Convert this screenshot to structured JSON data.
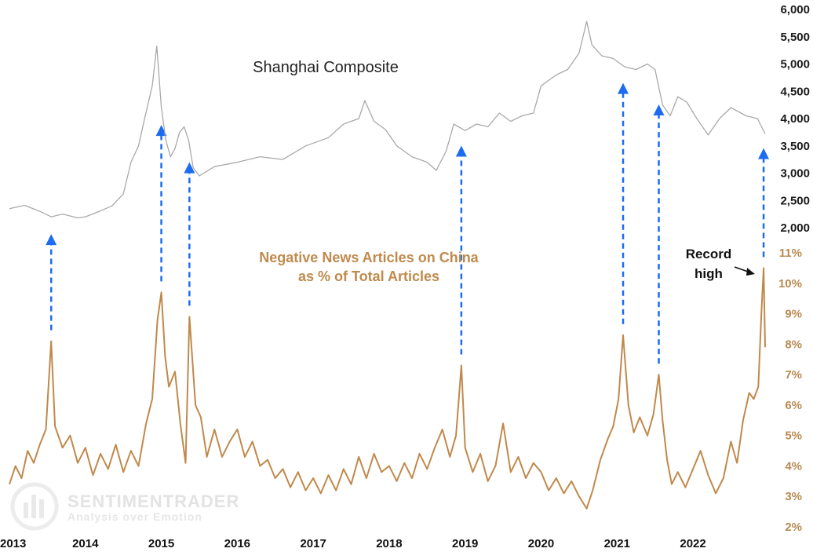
{
  "chart_data": {
    "type": "line",
    "x_range": [
      2013.0,
      2022.95
    ],
    "x_ticks": [
      "2013",
      "2014",
      "2015",
      "2016",
      "2017",
      "2018",
      "2019",
      "2020",
      "2021",
      "2022"
    ],
    "y_left": {
      "min": 2000,
      "max": 6000,
      "ticks": [
        "6,000",
        "5,500",
        "5,000",
        "4,500",
        "4,000",
        "3,500",
        "3,000",
        "2,500",
        "2,000"
      ]
    },
    "y_right": {
      "unit": "%",
      "min": 2,
      "max": 11,
      "ticks": [
        "11%",
        "10%",
        "9%",
        "8%",
        "7%",
        "6%",
        "5%",
        "4%",
        "3%",
        "2%"
      ]
    },
    "series": [
      {
        "name": "Shanghai Composite",
        "color": "#a9a9a9",
        "axis": "left",
        "points": [
          [
            2013.0,
            2350
          ],
          [
            2013.2,
            2410
          ],
          [
            2013.4,
            2300
          ],
          [
            2013.55,
            2200
          ],
          [
            2013.7,
            2250
          ],
          [
            2013.9,
            2180
          ],
          [
            2014.0,
            2200
          ],
          [
            2014.15,
            2280
          ],
          [
            2014.35,
            2400
          ],
          [
            2014.5,
            2620
          ],
          [
            2014.6,
            3200
          ],
          [
            2014.7,
            3500
          ],
          [
            2014.78,
            4000
          ],
          [
            2014.88,
            4600
          ],
          [
            2014.94,
            5330
          ],
          [
            2015.0,
            4200
          ],
          [
            2015.06,
            3600
          ],
          [
            2015.12,
            3300
          ],
          [
            2015.18,
            3450
          ],
          [
            2015.24,
            3750
          ],
          [
            2015.3,
            3850
          ],
          [
            2015.36,
            3600
          ],
          [
            2015.42,
            3100
          ],
          [
            2015.5,
            2950
          ],
          [
            2015.7,
            3120
          ],
          [
            2016.0,
            3200
          ],
          [
            2016.3,
            3300
          ],
          [
            2016.6,
            3250
          ],
          [
            2016.9,
            3500
          ],
          [
            2017.2,
            3650
          ],
          [
            2017.4,
            3900
          ],
          [
            2017.6,
            4000
          ],
          [
            2017.68,
            4330
          ],
          [
            2017.8,
            3950
          ],
          [
            2017.95,
            3800
          ],
          [
            2018.1,
            3500
          ],
          [
            2018.3,
            3300
          ],
          [
            2018.5,
            3200
          ],
          [
            2018.62,
            3050
          ],
          [
            2018.75,
            3400
          ],
          [
            2018.85,
            3900
          ],
          [
            2019.0,
            3780
          ],
          [
            2019.15,
            3900
          ],
          [
            2019.3,
            3850
          ],
          [
            2019.45,
            4100
          ],
          [
            2019.6,
            3950
          ],
          [
            2019.75,
            4050
          ],
          [
            2019.9,
            4100
          ],
          [
            2020.0,
            4600
          ],
          [
            2020.2,
            4800
          ],
          [
            2020.35,
            4900
          ],
          [
            2020.5,
            5200
          ],
          [
            2020.6,
            5780
          ],
          [
            2020.67,
            5350
          ],
          [
            2020.8,
            5150
          ],
          [
            2020.95,
            5100
          ],
          [
            2021.1,
            4950
          ],
          [
            2021.25,
            4900
          ],
          [
            2021.4,
            5000
          ],
          [
            2021.5,
            4900
          ],
          [
            2021.6,
            4250
          ],
          [
            2021.7,
            4050
          ],
          [
            2021.8,
            4400
          ],
          [
            2021.92,
            4300
          ],
          [
            2022.05,
            4000
          ],
          [
            2022.2,
            3700
          ],
          [
            2022.35,
            4000
          ],
          [
            2022.5,
            4200
          ],
          [
            2022.7,
            4050
          ],
          [
            2022.85,
            4000
          ],
          [
            2022.95,
            3720
          ]
        ]
      },
      {
        "name": "Negative News Articles on China as % of Total Articles",
        "color": "#c0894b",
        "axis": "right",
        "points": [
          [
            2013.0,
            3.4
          ],
          [
            2013.08,
            4.0
          ],
          [
            2013.16,
            3.6
          ],
          [
            2013.24,
            4.5
          ],
          [
            2013.32,
            4.1
          ],
          [
            2013.4,
            4.7
          ],
          [
            2013.48,
            5.2
          ],
          [
            2013.55,
            8.1
          ],
          [
            2013.6,
            5.3
          ],
          [
            2013.7,
            4.6
          ],
          [
            2013.8,
            5.0
          ],
          [
            2013.9,
            4.1
          ],
          [
            2014.0,
            4.6
          ],
          [
            2014.1,
            3.7
          ],
          [
            2014.2,
            4.4
          ],
          [
            2014.3,
            3.9
          ],
          [
            2014.4,
            4.7
          ],
          [
            2014.5,
            3.8
          ],
          [
            2014.6,
            4.5
          ],
          [
            2014.7,
            4.0
          ],
          [
            2014.8,
            5.4
          ],
          [
            2014.88,
            6.2
          ],
          [
            2014.95,
            8.8
          ],
          [
            2015.0,
            9.7
          ],
          [
            2015.05,
            7.6
          ],
          [
            2015.1,
            6.6
          ],
          [
            2015.18,
            7.1
          ],
          [
            2015.25,
            5.4
          ],
          [
            2015.32,
            4.1
          ],
          [
            2015.37,
            8.9
          ],
          [
            2015.45,
            6.0
          ],
          [
            2015.52,
            5.6
          ],
          [
            2015.6,
            4.3
          ],
          [
            2015.7,
            5.2
          ],
          [
            2015.8,
            4.3
          ],
          [
            2015.9,
            4.8
          ],
          [
            2016.0,
            5.2
          ],
          [
            2016.1,
            4.3
          ],
          [
            2016.2,
            4.8
          ],
          [
            2016.3,
            4.0
          ],
          [
            2016.4,
            4.2
          ],
          [
            2016.5,
            3.6
          ],
          [
            2016.6,
            3.9
          ],
          [
            2016.7,
            3.3
          ],
          [
            2016.8,
            3.8
          ],
          [
            2016.9,
            3.2
          ],
          [
            2017.0,
            3.6
          ],
          [
            2017.1,
            3.1
          ],
          [
            2017.2,
            3.7
          ],
          [
            2017.3,
            3.2
          ],
          [
            2017.4,
            3.9
          ],
          [
            2017.5,
            3.4
          ],
          [
            2017.6,
            4.3
          ],
          [
            2017.7,
            3.6
          ],
          [
            2017.8,
            4.4
          ],
          [
            2017.9,
            3.8
          ],
          [
            2018.0,
            4.0
          ],
          [
            2018.1,
            3.5
          ],
          [
            2018.2,
            4.1
          ],
          [
            2018.3,
            3.6
          ],
          [
            2018.4,
            4.4
          ],
          [
            2018.5,
            3.9
          ],
          [
            2018.6,
            4.6
          ],
          [
            2018.7,
            5.2
          ],
          [
            2018.8,
            4.3
          ],
          [
            2018.88,
            5.0
          ],
          [
            2018.95,
            7.3
          ],
          [
            2019.0,
            4.6
          ],
          [
            2019.1,
            3.8
          ],
          [
            2019.2,
            4.4
          ],
          [
            2019.3,
            3.5
          ],
          [
            2019.4,
            4.0
          ],
          [
            2019.5,
            5.4
          ],
          [
            2019.6,
            3.8
          ],
          [
            2019.7,
            4.3
          ],
          [
            2019.8,
            3.6
          ],
          [
            2019.9,
            4.1
          ],
          [
            2020.0,
            3.8
          ],
          [
            2020.1,
            3.2
          ],
          [
            2020.2,
            3.6
          ],
          [
            2020.3,
            3.1
          ],
          [
            2020.4,
            3.5
          ],
          [
            2020.5,
            3.0
          ],
          [
            2020.6,
            2.6
          ],
          [
            2020.68,
            3.2
          ],
          [
            2020.78,
            4.2
          ],
          [
            2020.88,
            4.9
          ],
          [
            2020.95,
            5.3
          ],
          [
            2021.02,
            6.2
          ],
          [
            2021.08,
            8.3
          ],
          [
            2021.15,
            6.0
          ],
          [
            2021.22,
            5.1
          ],
          [
            2021.3,
            5.6
          ],
          [
            2021.4,
            5.0
          ],
          [
            2021.48,
            5.7
          ],
          [
            2021.55,
            7.0
          ],
          [
            2021.6,
            5.5
          ],
          [
            2021.66,
            4.2
          ],
          [
            2021.72,
            3.4
          ],
          [
            2021.8,
            3.8
          ],
          [
            2021.9,
            3.3
          ],
          [
            2022.0,
            3.9
          ],
          [
            2022.1,
            4.5
          ],
          [
            2022.2,
            3.7
          ],
          [
            2022.3,
            3.1
          ],
          [
            2022.4,
            3.6
          ],
          [
            2022.5,
            4.8
          ],
          [
            2022.58,
            4.1
          ],
          [
            2022.66,
            5.5
          ],
          [
            2022.74,
            6.4
          ],
          [
            2022.8,
            6.2
          ],
          [
            2022.86,
            6.6
          ],
          [
            2022.9,
            9.0
          ],
          [
            2022.93,
            10.5
          ],
          [
            2022.95,
            7.9
          ]
        ]
      }
    ],
    "annotations": [
      {
        "text": "Shanghai Composite"
      },
      {
        "text": "Negative News Articles on China",
        "text2": "as % of Total Articles"
      },
      {
        "text": "Record",
        "text2": "high"
      }
    ],
    "arrows": [
      2013.55,
      2015.0,
      2015.37,
      2018.95,
      2021.08,
      2021.55,
      2022.93
    ],
    "arrow_color": "#1d6cf0",
    "grid": false,
    "legend": "none"
  },
  "watermark": {
    "line1": "SENTIMENTRADER",
    "line2": "Analysis over Emotion"
  }
}
